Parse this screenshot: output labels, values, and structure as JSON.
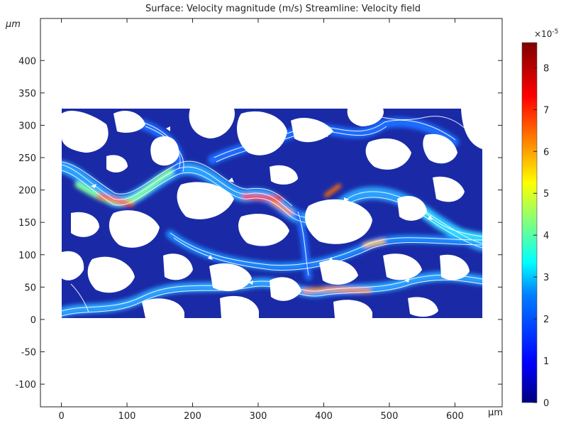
{
  "chart_data": {
    "type": "heatmap",
    "title": "Surface: Velocity magnitude (m/s)  Streamline: Velocity field",
    "x_unit": "µm",
    "y_unit": "µm",
    "xlim": [
      -32,
      672
    ],
    "ylim": [
      -135,
      465
    ],
    "x_ticks": [
      0,
      100,
      200,
      300,
      400,
      500,
      600
    ],
    "y_ticks": [
      -100,
      -50,
      0,
      50,
      100,
      150,
      200,
      250,
      300,
      350,
      400
    ],
    "domain": {
      "x": [
        0,
        642
      ],
      "y": [
        0,
        320
      ]
    },
    "colorbar": {
      "multiplier": "×10",
      "exponent": "-5",
      "ticks": [
        0,
        1,
        2,
        3,
        4,
        5,
        6,
        7,
        8
      ],
      "range": [
        0,
        8.6
      ],
      "colormap": [
        "#00007f",
        "#0000ff",
        "#007fff",
        "#00ffff",
        "#7fff7f",
        "#ffff00",
        "#ff7f00",
        "#ff0000",
        "#7f0000"
      ]
    },
    "grid": false,
    "legend": "colorbar-right"
  }
}
